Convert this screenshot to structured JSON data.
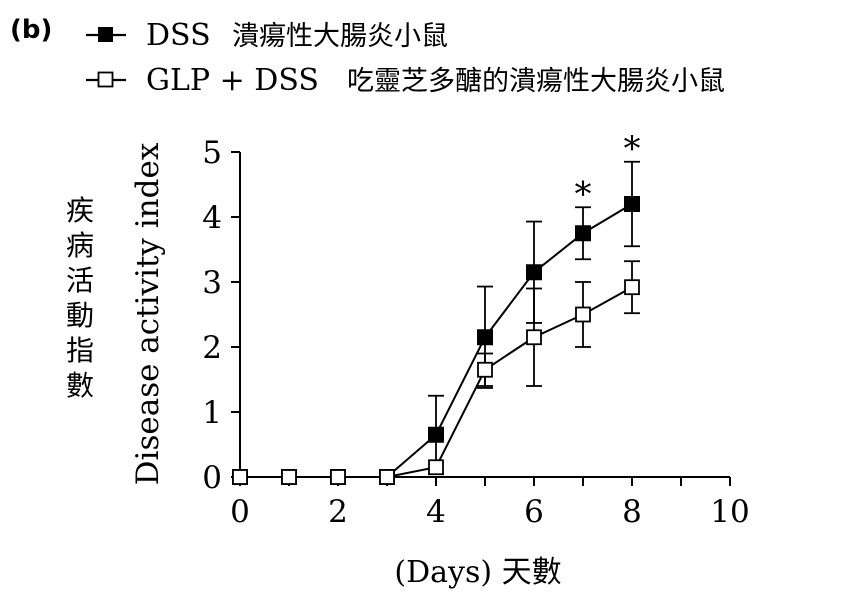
{
  "panel_label": "(b)",
  "legend": [
    {
      "code": "DSS",
      "desc": "潰瘍性大腸炎小鼠",
      "marker": "filled-square"
    },
    {
      "code": "GLP + DSS",
      "desc": "吃靈芝多醣的潰瘍性大腸炎小鼠",
      "marker": "open-square"
    }
  ],
  "y_axis": {
    "label_en": "Disease activity index",
    "label_zh": "疾病活動指數"
  },
  "x_axis": {
    "label": "(Days) 天數"
  },
  "chart_data": {
    "type": "line",
    "xlabel": "(Days) 天數",
    "ylabel": "Disease activity index",
    "xlim": [
      0,
      10
    ],
    "ylim": [
      0,
      5
    ],
    "xticks": [
      0,
      2,
      4,
      6,
      8,
      10
    ],
    "yticks": [
      0,
      1,
      2,
      3,
      4,
      5
    ],
    "grid": false,
    "legend_position": "top-left",
    "series": [
      {
        "name": "DSS 潰瘍性大腸炎小鼠",
        "marker": "filled-square",
        "x": [
          0,
          1,
          2,
          3,
          4,
          5,
          6,
          7,
          8
        ],
        "y": [
          0,
          0,
          0,
          0,
          0.65,
          2.15,
          3.15,
          3.75,
          4.2
        ],
        "error": [
          0,
          0,
          0,
          0,
          0.6,
          0.78,
          0.78,
          0.4,
          0.65
        ]
      },
      {
        "name": "GLP + DSS 吃靈芝多醣的潰瘍性大腸炎小鼠",
        "marker": "open-square",
        "x": [
          0,
          1,
          2,
          3,
          4,
          5,
          6,
          7,
          8
        ],
        "y": [
          0,
          0,
          0,
          0,
          0.15,
          1.65,
          2.15,
          2.5,
          2.92
        ],
        "error": [
          0,
          0,
          0,
          0,
          0,
          0.25,
          0.75,
          0.5,
          0.4
        ]
      }
    ],
    "annotations": [
      {
        "x": 7,
        "y": 4.15,
        "text": "*"
      },
      {
        "x": 8,
        "y": 4.85,
        "text": "*"
      }
    ]
  }
}
